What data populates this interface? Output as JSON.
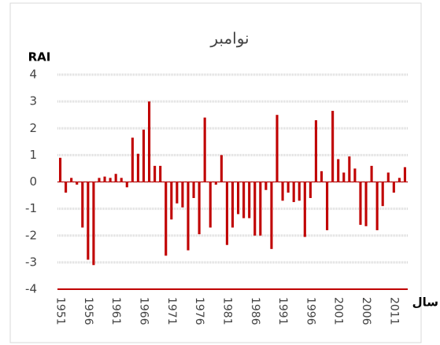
{
  "chart_data": {
    "type": "bar",
    "title": "نوامبر",
    "y_label": "RAI",
    "x_label": "سال",
    "categories": [
      "1951",
      null,
      null,
      null,
      null,
      "1956",
      null,
      null,
      null,
      null,
      "1961",
      null,
      null,
      null,
      null,
      "1966",
      null,
      null,
      null,
      null,
      "1971",
      null,
      null,
      null,
      null,
      "1976",
      null,
      null,
      null,
      null,
      "1981",
      null,
      null,
      null,
      null,
      "1986",
      null,
      null,
      null,
      null,
      "1991",
      null,
      null,
      null,
      null,
      "1996",
      null,
      null,
      null,
      null,
      "2001",
      null,
      null,
      null,
      null,
      "2006",
      null,
      null,
      null,
      null,
      "2011",
      null,
      null
    ],
    "values": [
      0.9,
      -0.4,
      0.15,
      -0.1,
      -1.7,
      -2.9,
      -3.1,
      0.15,
      0.2,
      0.15,
      0.3,
      0.15,
      -0.2,
      1.65,
      1.05,
      1.95,
      3.0,
      0.6,
      0.6,
      -2.75,
      -1.4,
      -0.8,
      -0.95,
      -2.55,
      -0.6,
      -1.95,
      2.4,
      -1.7,
      -0.1,
      1.0,
      -2.35,
      -1.7,
      -1.2,
      -1.35,
      -1.35,
      -2.0,
      -2.0,
      -0.3,
      -2.5,
      2.5,
      -0.7,
      -0.4,
      -0.75,
      -0.7,
      -2.05,
      -0.6,
      2.3,
      0.4,
      -1.8,
      2.65,
      0.85,
      0.35,
      0.95,
      0.5,
      -1.6,
      -1.65,
      0.6,
      -1.8,
      -0.9,
      0.35,
      -0.4,
      0.15,
      0.55
    ],
    "color": "#c00000",
    "ylim": [
      -4,
      4
    ],
    "yticks": [
      -4,
      -3,
      -2,
      -1,
      0,
      1,
      2,
      3,
      4
    ],
    "grid": true
  }
}
